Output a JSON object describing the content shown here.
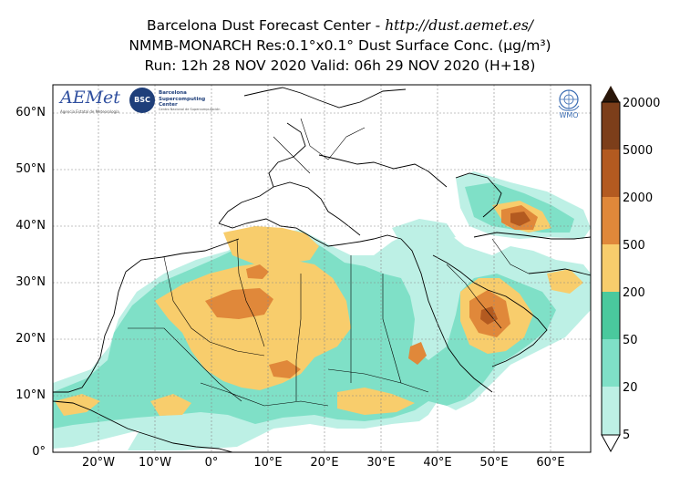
{
  "header": {
    "title_prefix": "Barcelona Dust Forecast Center - ",
    "title_url": "http://dust.aemet.es/",
    "line2": "NMMB-MONARCH   Res:0.1°x0.1°   Dust Surface Conc. (µg/m³)",
    "line3": "Run: 12h 28 NOV 2020   Valid: 06h 29 NOV 2020 (H+18)"
  },
  "axes": {
    "lat_labels": [
      "60°N",
      "50°N",
      "40°N",
      "30°N",
      "20°N",
      "10°N",
      "0°"
    ],
    "lon_labels": [
      "20°W",
      "10°W",
      "0°",
      "10°E",
      "20°E",
      "30°E",
      "40°E",
      "50°E",
      "60°E"
    ]
  },
  "colorbar": {
    "levels": [
      "5",
      "20",
      "50",
      "200",
      "500",
      "2000",
      "5000",
      "20000"
    ],
    "colors": [
      "#bdf0e5",
      "#7fe0c7",
      "#4ac99d",
      "#f8cd6c",
      "#e0883a",
      "#b35a20",
      "#7c3e1a",
      "#4a2710",
      "#2a170a"
    ]
  },
  "logos": {
    "aemet": "AEMet",
    "aemet_sub": "Agencia Estatal de Meteorología",
    "bsc_badge": "BSC",
    "bsc_name": "Barcelona Supercomputing Center",
    "bsc_sub": "Centro Nacional de Supercomputación",
    "wmo": "WMO",
    "wmo_icon": "wmo-emblem-icon"
  }
}
